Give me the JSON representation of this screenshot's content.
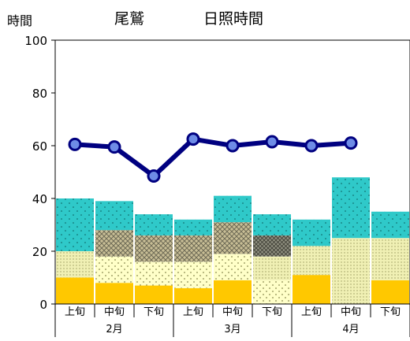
{
  "chart_data": {
    "type": "bar",
    "title_left": "時間",
    "title_place": "尾鷲",
    "title_main": "日照時間",
    "ylim": [
      0,
      100
    ],
    "yticks": [
      "0",
      "20",
      "40",
      "60",
      "80",
      "100"
    ],
    "categories": [
      "上旬",
      "中旬",
      "下旬",
      "上旬",
      "中旬",
      "下旬",
      "上旬",
      "中旬",
      "下旬"
    ],
    "months": [
      "2月",
      "3月",
      "4月"
    ],
    "stack_colors": [
      "#FFC800",
      "#FFFFC8",
      "#F0F0B4",
      "#E6E1B4",
      "#C8BE96",
      "#949484",
      "#2FC9C9",
      "#15A8A8",
      "#007070"
    ],
    "stacks": [
      [
        10,
        8,
        7,
        6,
        9,
        0,
        11,
        0,
        9
      ],
      [
        0,
        10,
        9,
        10,
        10,
        9,
        0,
        0,
        0
      ],
      [
        10,
        0,
        0,
        0,
        0,
        0,
        11,
        25,
        0
      ],
      [
        0,
        0,
        0,
        0,
        0,
        9,
        0,
        0,
        16
      ],
      [
        0,
        10,
        10,
        10,
        12,
        0,
        0,
        0,
        0
      ],
      [
        0,
        0,
        0,
        0,
        0,
        8,
        0,
        0,
        0
      ],
      [
        20,
        11,
        8,
        6,
        10,
        8,
        10,
        23,
        10
      ],
      [
        0,
        0,
        0,
        0,
        0,
        0,
        0,
        0,
        0
      ],
      [
        0,
        0,
        0,
        0,
        0,
        0,
        0,
        0,
        0
      ]
    ],
    "line_series": {
      "name": "",
      "color": "#000080",
      "values": [
        60.5,
        59.5,
        48.5,
        62.5,
        60,
        61.5,
        60,
        61,
        null
      ]
    }
  }
}
